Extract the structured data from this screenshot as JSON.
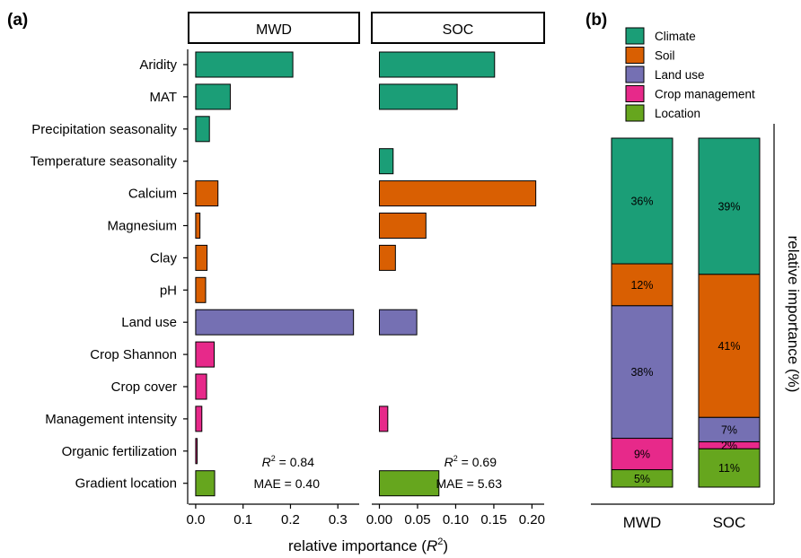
{
  "panel_a_label": "(a)",
  "panel_b_label": "(b)",
  "chart_data": [
    {
      "type": "bar",
      "orientation": "horizontal",
      "facet": "MWD",
      "categories": [
        "Aridity",
        "MAT",
        "Precipitation seasonality",
        "Temperature seasonality",
        "Calcium",
        "Magnesium",
        "Clay",
        "pH",
        "Land use",
        "Crop Shannon",
        "Crop cover",
        "Management intensity",
        "Organic fertilization",
        "Gradient location"
      ],
      "groups": [
        "Climate",
        "Climate",
        "Climate",
        "Climate",
        "Soil",
        "Soil",
        "Soil",
        "Soil",
        "Land use",
        "Crop management",
        "Crop management",
        "Crop management",
        "Crop management",
        "Location"
      ],
      "values": [
        0.205,
        0.073,
        0.029,
        0.0,
        0.047,
        0.009,
        0.024,
        0.021,
        0.333,
        0.039,
        0.023,
        0.013,
        0.003,
        0.04
      ],
      "xlim": [
        -0.015,
        0.345
      ],
      "xticks": [
        "0.0",
        "0.1",
        "0.2",
        "0.3"
      ],
      "xtick_values": [
        0,
        0.1,
        0.2,
        0.3
      ],
      "annotation": {
        "r2_label": "R",
        "r2_sup": "2",
        "r2_value": " = 0.84",
        "mae": "MAE = 0.40"
      }
    },
    {
      "type": "bar",
      "orientation": "horizontal",
      "facet": "SOC",
      "categories": [
        "Aridity",
        "MAT",
        "Precipitation seasonality",
        "Temperature seasonality",
        "Calcium",
        "Magnesium",
        "Clay",
        "pH",
        "Land use",
        "Crop Shannon",
        "Crop cover",
        "Management intensity",
        "Organic fertilization",
        "Gradient location"
      ],
      "groups": [
        "Climate",
        "Climate",
        "Climate",
        "Climate",
        "Soil",
        "Soil",
        "Soil",
        "Soil",
        "Land use",
        "Crop management",
        "Crop management",
        "Crop management",
        "Crop management",
        "Location"
      ],
      "values": [
        0.151,
        0.102,
        0.0,
        0.018,
        0.205,
        0.061,
        0.021,
        0.0,
        0.049,
        0.0,
        0.0,
        0.011,
        0.0,
        0.078
      ],
      "xlim": [
        -0.01,
        0.216
      ],
      "xticks": [
        "0.00",
        "0.05",
        "0.10",
        "0.15",
        "0.20"
      ],
      "xtick_values": [
        0,
        0.05,
        0.1,
        0.15,
        0.2
      ],
      "annotation": {
        "r2_label": "R",
        "r2_sup": "2",
        "r2_value": " = 0.69",
        "mae": "MAE = 5.63"
      }
    },
    {
      "type": "bar",
      "stacked": true,
      "categories": [
        "MWD",
        "SOC"
      ],
      "series": [
        {
          "name": "Climate",
          "values": [
            36,
            39
          ],
          "labels": [
            "36%",
            "39%"
          ]
        },
        {
          "name": "Soil",
          "values": [
            12,
            41
          ],
          "labels": [
            "12%",
            "41%"
          ]
        },
        {
          "name": "Land use",
          "values": [
            38,
            7
          ],
          "labels": [
            "38%",
            "7%"
          ]
        },
        {
          "name": "Crop management",
          "values": [
            9,
            2
          ],
          "labels": [
            "9%",
            "2%"
          ]
        },
        {
          "name": "Location",
          "values": [
            5,
            11
          ],
          "labels": [
            "5%",
            "11%"
          ]
        }
      ],
      "ylabel": "relative importance (%)",
      "ylim": [
        0,
        100
      ],
      "legend_position": "top"
    }
  ],
  "xlabel_main": "relative importance (",
  "xlabel_r": "R",
  "xlabel_sup": "2",
  "xlabel_close": ")",
  "colors": {
    "Climate": "#1b9e77",
    "Soil": "#d95f02",
    "Land use": "#7570b3",
    "Crop management": "#e7298a",
    "Location": "#66a61e"
  }
}
